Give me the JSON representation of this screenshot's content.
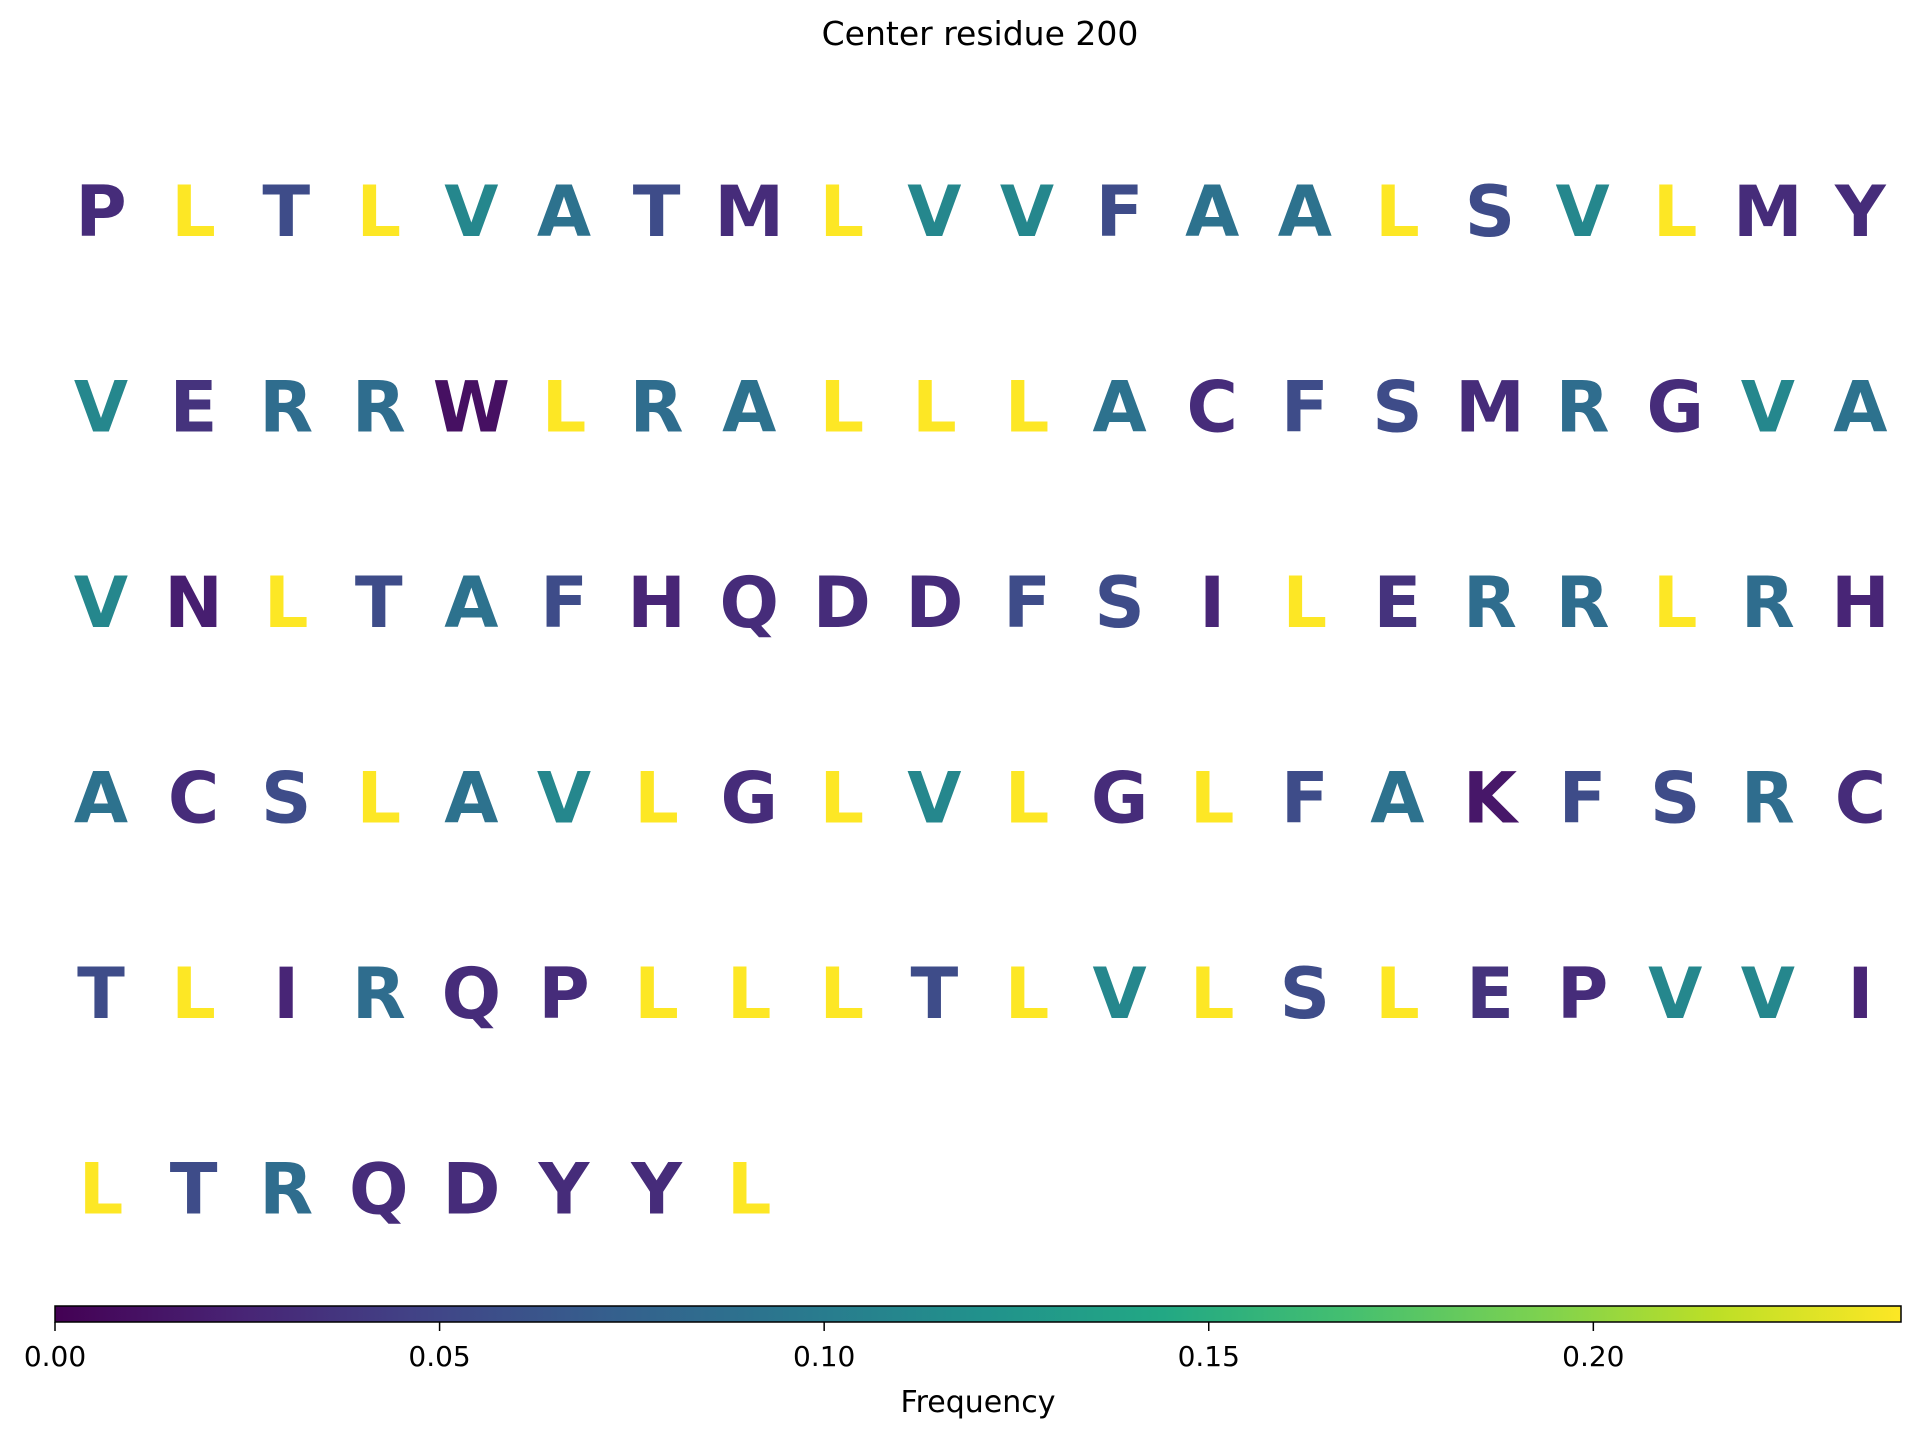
{
  "chart_data": {
    "type": "heatmap",
    "title": "Center residue 200",
    "colormap": "viridis",
    "colorbar": {
      "label": "Frequency",
      "range": [
        0.0,
        0.24
      ],
      "ticks": [
        0.0,
        0.05,
        0.1,
        0.15,
        0.2
      ],
      "tick_labels": [
        "0.00",
        "0.05",
        "0.10",
        "0.15",
        "0.20"
      ]
    },
    "columns_per_row": 20,
    "residue_frequencies": {
      "L": 0.24,
      "V": 0.11,
      "A": 0.09,
      "R": 0.085,
      "T": 0.055,
      "S": 0.055,
      "F": 0.055,
      "E": 0.035,
      "P": 0.03,
      "M": 0.03,
      "Y": 0.03,
      "C": 0.03,
      "G": 0.03,
      "Q": 0.03,
      "D": 0.03,
      "I": 0.025,
      "H": 0.025,
      "N": 0.02,
      "K": 0.015,
      "W": 0.01
    },
    "sequence": [
      "P",
      "L",
      "T",
      "L",
      "V",
      "A",
      "T",
      "M",
      "L",
      "V",
      "V",
      "F",
      "A",
      "A",
      "L",
      "S",
      "V",
      "L",
      "M",
      "Y",
      "V",
      "E",
      "R",
      "R",
      "W",
      "L",
      "R",
      "A",
      "L",
      "L",
      "L",
      "A",
      "C",
      "F",
      "S",
      "M",
      "R",
      "G",
      "V",
      "A",
      "V",
      "N",
      "L",
      "T",
      "A",
      "F",
      "H",
      "Q",
      "D",
      "D",
      "F",
      "S",
      "I",
      "L",
      "E",
      "R",
      "R",
      "L",
      "R",
      "H",
      "A",
      "C",
      "S",
      "L",
      "A",
      "V",
      "L",
      "G",
      "L",
      "V",
      "L",
      "G",
      "L",
      "F",
      "A",
      "K",
      "F",
      "S",
      "R",
      "C",
      "T",
      "L",
      "I",
      "R",
      "Q",
      "P",
      "L",
      "L",
      "L",
      "T",
      "L",
      "V",
      "L",
      "S",
      "L",
      "E",
      "P",
      "V",
      "V",
      "I",
      "L",
      "T",
      "R",
      "Q",
      "D",
      "Y",
      "Y",
      "L"
    ]
  }
}
